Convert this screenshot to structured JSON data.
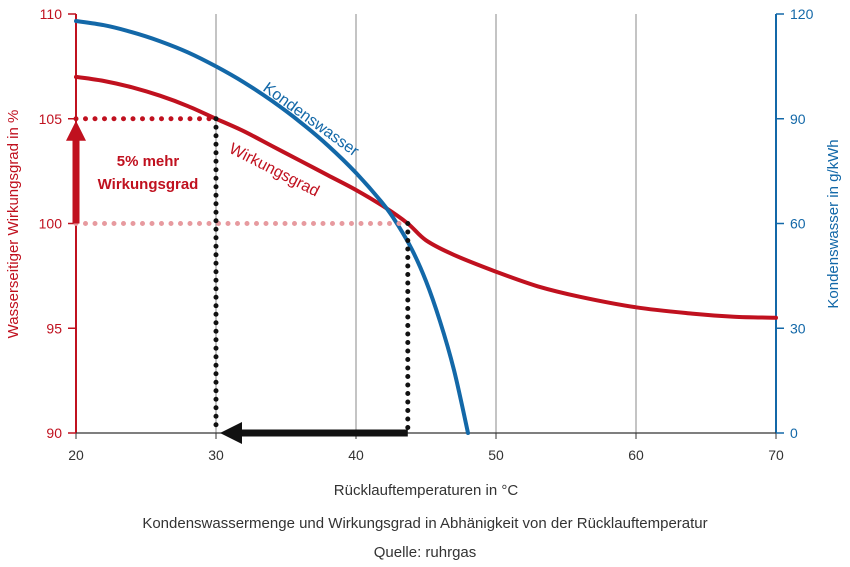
{
  "chart_data": {
    "type": "line",
    "x_axis": {
      "label": "Rücklauftemperaturen in °C",
      "range": [
        20,
        70
      ],
      "ticks": [
        "20",
        "30",
        "40",
        "50",
        "60",
        "70"
      ]
    },
    "y_left_axis": {
      "label": "Wasserseitiger Wirkungsgrad in %",
      "range": [
        90,
        110
      ],
      "ticks": [
        "90",
        "95",
        "100",
        "105",
        "110"
      ],
      "color": "#c0111f"
    },
    "y_right_axis": {
      "label": "Kondenswasser in g/kWh",
      "range": [
        0,
        120
      ],
      "ticks": [
        "0",
        "30",
        "60",
        "90",
        "120"
      ],
      "color": "#1368a8"
    },
    "grid": "vertical",
    "series": [
      {
        "name": "Wirkungsgrad",
        "axis": "left",
        "color": "#c0111f",
        "x": [
          20,
          22,
          24,
          26,
          28,
          30,
          32,
          34,
          36,
          38,
          40,
          42,
          43.7,
          45,
          47,
          50,
          53,
          56,
          60,
          64,
          67,
          70
        ],
        "y": [
          107.0,
          106.8,
          106.5,
          106.1,
          105.6,
          105.0,
          104.4,
          103.7,
          103.0,
          102.3,
          101.6,
          100.8,
          100.0,
          99.2,
          98.5,
          97.7,
          97.0,
          96.5,
          96.0,
          95.7,
          95.55,
          95.5
        ]
      },
      {
        "name": "Kondenswasser",
        "axis": "right",
        "color": "#1368a8",
        "x": [
          20,
          22,
          24,
          26,
          28,
          30,
          32,
          34,
          36,
          38,
          40,
          42,
          43,
          44,
          45,
          46,
          47,
          48
        ],
        "y": [
          118,
          116.8,
          114.8,
          112.2,
          109,
          105,
          100.4,
          95.1,
          89.1,
          82.3,
          74.5,
          65.3,
          59.5,
          52.5,
          43.5,
          32.0,
          18.0,
          0
        ]
      }
    ],
    "annotations": {
      "gain_label_line1": "5% mehr",
      "gain_label_line2": "Wirkungsgrad",
      "gain_from": 100,
      "gain_to": 105,
      "temp_from": 43.7,
      "temp_to": 30
    },
    "caption": "Kondenswassermenge und Wirkungsgrad in Abhänigkeit von der Rücklauftemperatur",
    "source": "Quelle: ruhrgas"
  }
}
